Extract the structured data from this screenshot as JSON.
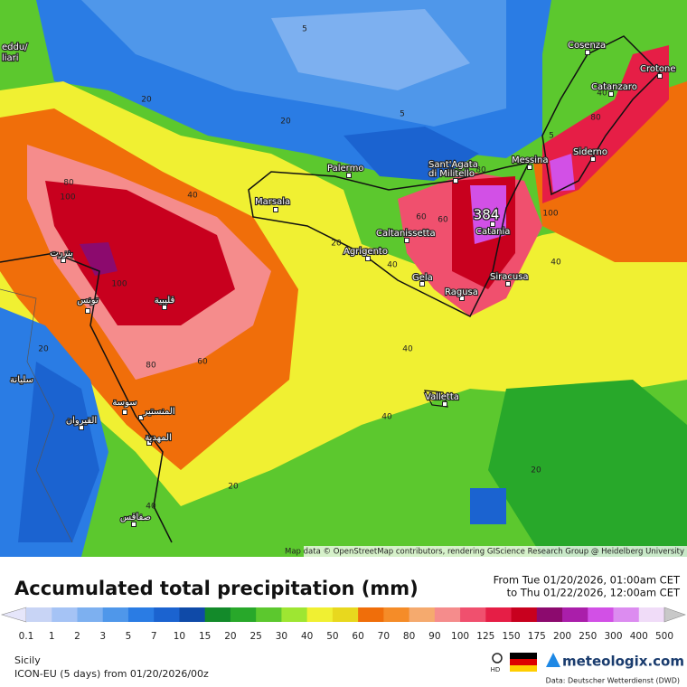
{
  "map": {
    "cities": [
      "Cosenza",
      "Crotone",
      "Catanzaro",
      "Siderno",
      "Messina",
      "Sant'Agata",
      "di Militello",
      "Palermo",
      "Marsala",
      "Caltanissetta",
      "Catania",
      "Agrigento",
      "Gela",
      "Siracusa",
      "Ragusa",
      "Valletta",
      "بنزرت",
      "تونس",
      "قليبية",
      "سوسة",
      "المنستير",
      "المهدية",
      "القيروان",
      "صفاقس",
      "سليانة",
      "eddu/",
      "liari"
    ],
    "contour_labels": [
      "5",
      "20",
      "20",
      "5",
      "5",
      "40",
      "80",
      "80",
      "100",
      "40",
      "20",
      "40",
      "60",
      "60",
      "100",
      "40",
      "100",
      "40",
      "80",
      "60",
      "40",
      "20",
      "20",
      "20",
      "40",
      "80"
    ],
    "max_label": "384",
    "attribution": "Map data © OpenStreetMap contributors, rendering GIScience Research Group @ Heidelberg University"
  },
  "legend": {
    "title": "Accumulated total precipitation (mm)",
    "period_from": "From Tue 01/20/2026, 01:00am CET",
    "period_to": "to Thu 01/22/2026, 12:00am CET",
    "ticks": [
      0.1,
      1,
      2,
      3,
      5,
      7,
      10,
      15,
      20,
      25,
      30,
      40,
      50,
      60,
      70,
      80,
      90,
      100,
      125,
      150,
      175,
      200,
      250,
      300,
      400,
      500
    ],
    "colors": [
      "#e6e6fa",
      "#c8d4f5",
      "#a5c3f5",
      "#7db0f0",
      "#4f97ea",
      "#2a7ce4",
      "#1b63d0",
      "#0f4aa8",
      "#138a2a",
      "#28a82a",
      "#5cc82e",
      "#9ee632",
      "#f0f032",
      "#e8d81e",
      "#f06e0a",
      "#f58c28",
      "#f5aa6e",
      "#f58c8c",
      "#f0506e",
      "#e61e46",
      "#c8001e",
      "#8c0a6e",
      "#aa1eaa",
      "#d250e6",
      "#dc8cf0",
      "#f0dcf8",
      "#c8c8c8"
    ]
  },
  "footer": {
    "region": "Sicily",
    "model": "ICON-EU (5 days) from 01/20/2026/00z",
    "hd": "HD",
    "brand": "meteologix.com",
    "source": "Data: Deutscher Wetterdienst (DWD)"
  }
}
